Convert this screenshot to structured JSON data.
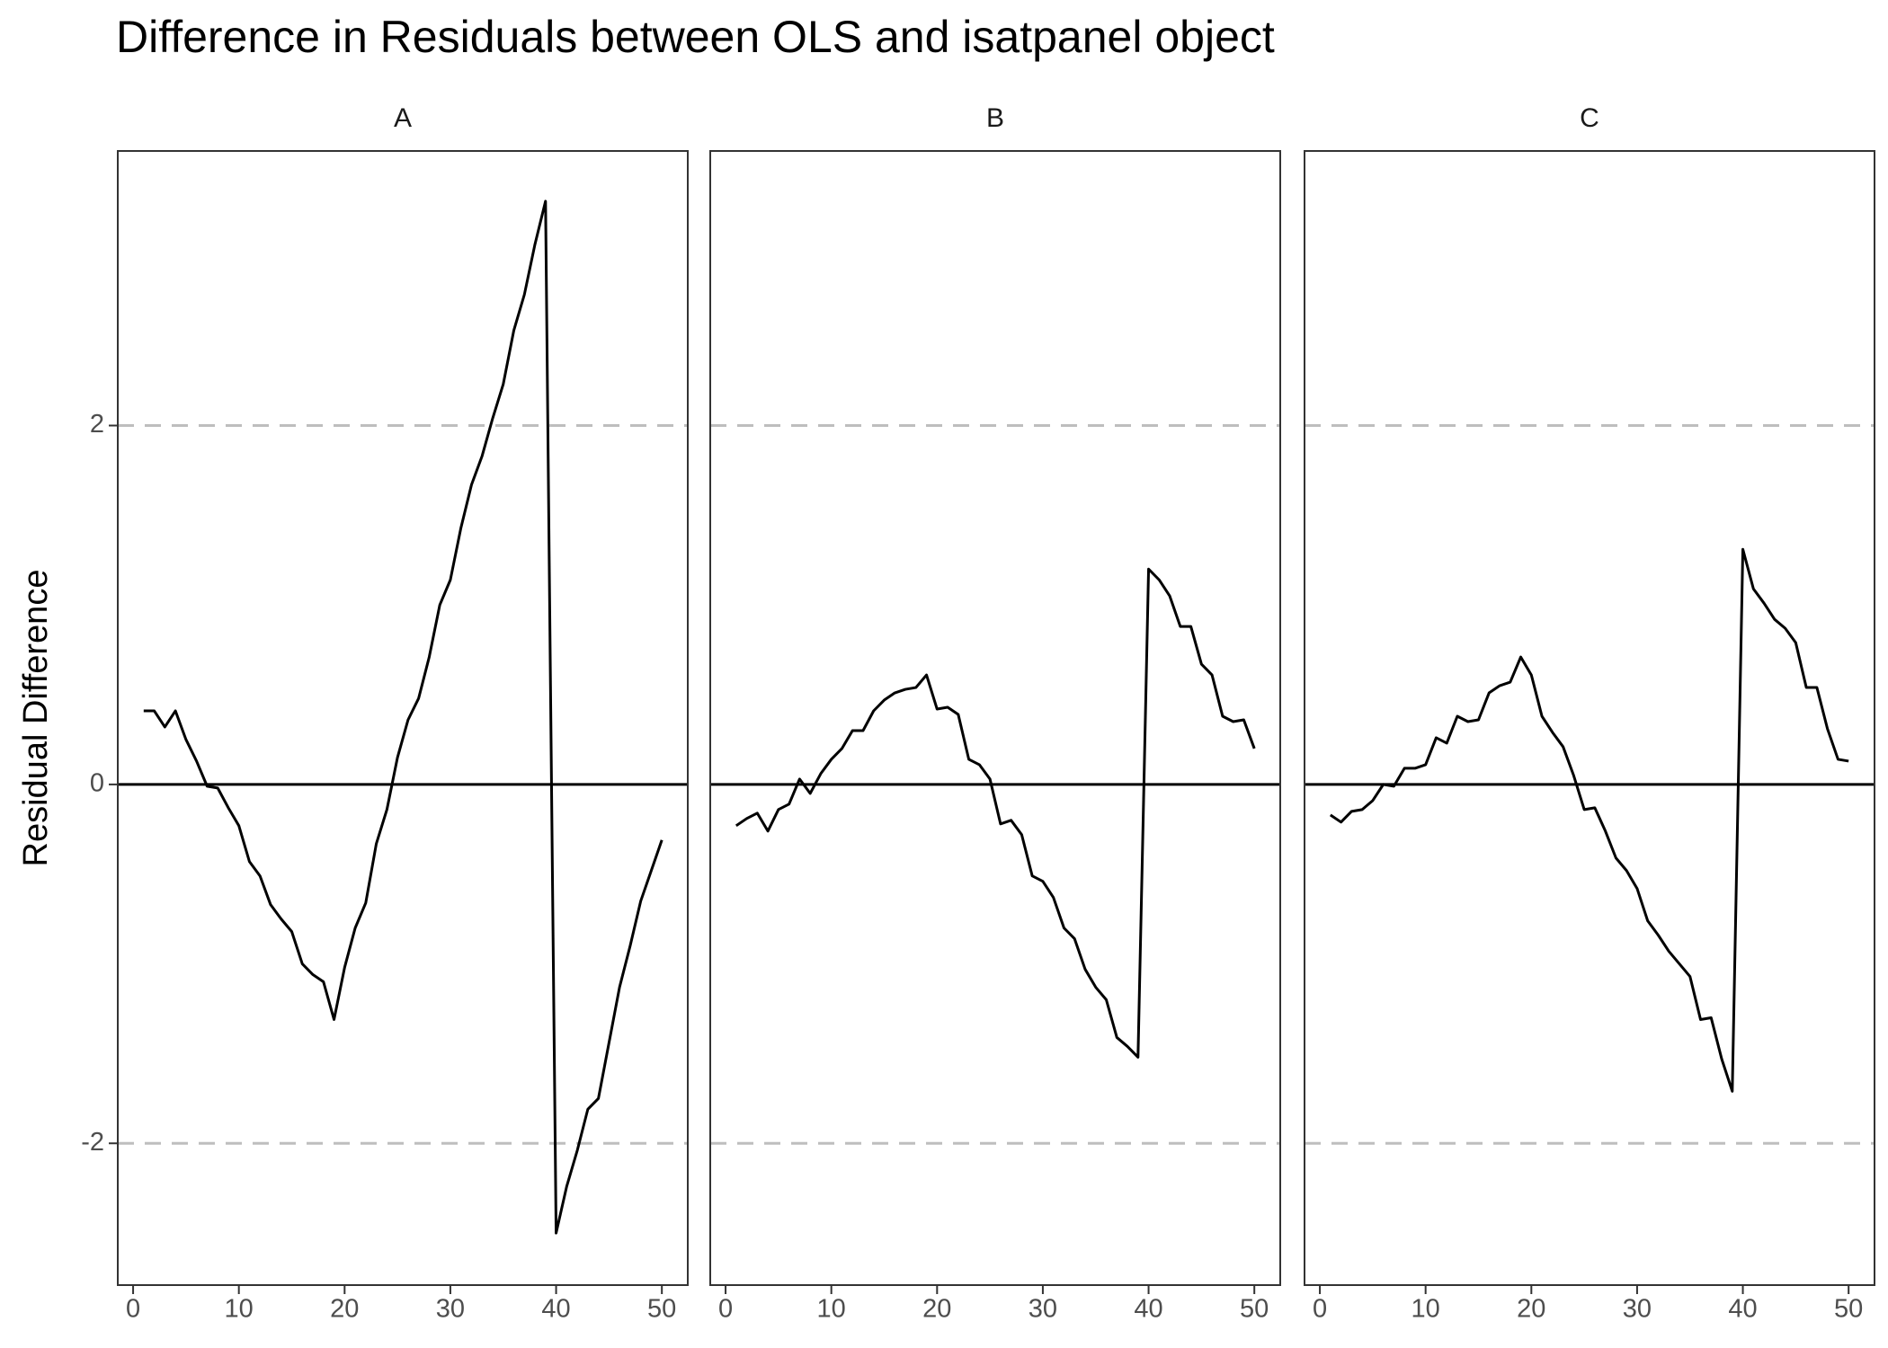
{
  "title": "Difference in Residuals between OLS and isatpanel object",
  "y_label": "Residual Difference",
  "chart_data": [
    {
      "type": "line",
      "facet": "A",
      "color": "#000000",
      "x": [
        1,
        2,
        3,
        4,
        5,
        6,
        7,
        8,
        9,
        10,
        11,
        12,
        13,
        14,
        15,
        16,
        17,
        18,
        19,
        20,
        21,
        22,
        23,
        24,
        25,
        26,
        27,
        28,
        29,
        30,
        31,
        32,
        33,
        34,
        35,
        36,
        37,
        38,
        39,
        40,
        41,
        42,
        43,
        44,
        45,
        46,
        47,
        48,
        49,
        50
      ],
      "values": [
        0.41,
        0.41,
        0.32,
        0.41,
        0.25,
        0.13,
        -0.01,
        -0.02,
        -0.13,
        -0.23,
        -0.43,
        -0.51,
        -0.67,
        -0.75,
        -0.82,
        -1.0,
        -1.06,
        -1.1,
        -1.31,
        -1.02,
        -0.8,
        -0.66,
        -0.33,
        -0.14,
        0.15,
        0.36,
        0.48,
        0.71,
        1.0,
        1.14,
        1.43,
        1.67,
        1.83,
        2.04,
        2.23,
        2.53,
        2.73,
        3.01,
        3.25,
        -2.5,
        -2.24,
        -2.04,
        -1.81,
        -1.75,
        -1.44,
        -1.13,
        -0.9,
        -0.65,
        -0.48,
        -0.31
      ],
      "xlim": [
        -1.45,
        52.45
      ],
      "ylim": [
        -2.79,
        3.53
      ],
      "xticks": [
        0,
        10,
        20,
        30,
        40,
        50
      ],
      "yticks": [
        -2,
        0,
        2
      ],
      "reference_lines": [
        {
          "value": 0,
          "style": "solid"
        },
        {
          "value": 2,
          "style": "dashed"
        },
        {
          "value": -2,
          "style": "dashed"
        }
      ]
    },
    {
      "type": "line",
      "facet": "B",
      "color": "#000000",
      "x": [
        1,
        2,
        3,
        4,
        5,
        6,
        7,
        8,
        9,
        10,
        11,
        12,
        13,
        14,
        15,
        16,
        17,
        18,
        19,
        20,
        21,
        22,
        23,
        24,
        25,
        26,
        27,
        28,
        29,
        30,
        31,
        32,
        33,
        34,
        35,
        36,
        37,
        38,
        39,
        40,
        41,
        42,
        43,
        44,
        45,
        46,
        47,
        48,
        49,
        50
      ],
      "values": [
        -0.23,
        -0.19,
        -0.16,
        -0.26,
        -0.14,
        -0.11,
        0.03,
        -0.05,
        0.06,
        0.14,
        0.2,
        0.3,
        0.3,
        0.41,
        0.47,
        0.51,
        0.53,
        0.54,
        0.61,
        0.42,
        0.43,
        0.39,
        0.14,
        0.11,
        0.03,
        -0.22,
        -0.2,
        -0.28,
        -0.51,
        -0.54,
        -0.63,
        -0.8,
        -0.86,
        -1.03,
        -1.13,
        -1.2,
        -1.41,
        -1.46,
        -1.52,
        1.2,
        1.14,
        1.05,
        0.88,
        0.88,
        0.67,
        0.61,
        0.38,
        0.35,
        0.36,
        0.2
      ],
      "xlim": [
        -1.45,
        52.45
      ],
      "ylim": [
        -2.79,
        3.53
      ],
      "xticks": [
        0,
        10,
        20,
        30,
        40,
        50
      ],
      "reference_lines": [
        {
          "value": 0,
          "style": "solid"
        },
        {
          "value": 2,
          "style": "dashed"
        },
        {
          "value": -2,
          "style": "dashed"
        }
      ]
    },
    {
      "type": "line",
      "facet": "C",
      "color": "#000000",
      "x": [
        1,
        2,
        3,
        4,
        5,
        6,
        7,
        8,
        9,
        10,
        11,
        12,
        13,
        14,
        15,
        16,
        17,
        18,
        19,
        20,
        21,
        22,
        23,
        24,
        25,
        26,
        27,
        28,
        29,
        30,
        31,
        32,
        33,
        34,
        35,
        36,
        37,
        38,
        39,
        40,
        41,
        42,
        43,
        44,
        45,
        46,
        47,
        48,
        49,
        50
      ],
      "values": [
        -0.17,
        -0.21,
        -0.15,
        -0.14,
        -0.09,
        0.0,
        -0.01,
        0.09,
        0.09,
        0.11,
        0.26,
        0.23,
        0.38,
        0.35,
        0.36,
        0.51,
        0.55,
        0.57,
        0.71,
        0.61,
        0.38,
        0.29,
        0.21,
        0.05,
        -0.14,
        -0.13,
        -0.26,
        -0.41,
        -0.48,
        -0.58,
        -0.76,
        -0.84,
        -0.93,
        -1.0,
        -1.07,
        -1.31,
        -1.3,
        -1.53,
        -1.71,
        1.31,
        1.09,
        1.01,
        0.92,
        0.87,
        0.79,
        0.54,
        0.54,
        0.31,
        0.14,
        0.13
      ],
      "xlim": [
        -1.45,
        52.45
      ],
      "ylim": [
        -2.79,
        3.53
      ],
      "xticks": [
        0,
        10,
        20,
        30,
        40,
        50
      ],
      "reference_lines": [
        {
          "value": 0,
          "style": "solid"
        },
        {
          "value": 2,
          "style": "dashed"
        },
        {
          "value": -2,
          "style": "dashed"
        }
      ]
    }
  ]
}
